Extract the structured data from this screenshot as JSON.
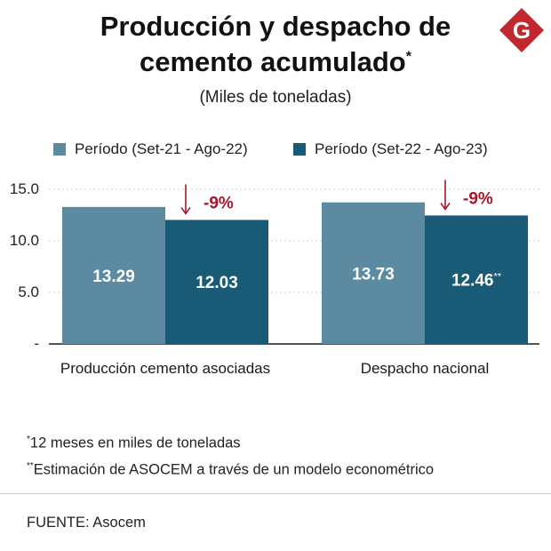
{
  "title": {
    "line1": "Producción y despacho de",
    "line2": "cemento acumulado",
    "marker": "*"
  },
  "subtitle": "(Miles de toneladas)",
  "logo_letter": "G",
  "colors": {
    "series1": "#5b8aa1",
    "series2": "#195b77",
    "change": "#a3192b",
    "grid": "#d0d0d0",
    "logo": "#c1272d"
  },
  "chart_data": {
    "type": "bar",
    "categories": [
      "Producción cemento asociadas",
      "Despacho nacional"
    ],
    "series": [
      {
        "name": "Período (Set-21 - Ago-22)",
        "values": [
          13.29,
          13.73
        ],
        "labels": [
          "13.29",
          "13.73"
        ]
      },
      {
        "name": "Período (Set-22 - Ago-23)",
        "values": [
          12.03,
          12.46
        ],
        "labels": [
          "12.03",
          "12.46**"
        ]
      }
    ],
    "changes": [
      "-9%",
      "-9%"
    ],
    "yticks": [
      "15.0",
      "10.0",
      "5.0",
      "-"
    ],
    "ytick_values": [
      15,
      10,
      5,
      0
    ],
    "ylim": [
      0,
      15
    ],
    "grid": true,
    "legend": "top"
  },
  "footnotes": [
    {
      "marker": "*",
      "text": "12 meses en miles de toneladas"
    },
    {
      "marker": "**",
      "text": "Estimación de ASOCEM a través de un modelo econométrico"
    }
  ],
  "source": "FUENTE: Asocem"
}
